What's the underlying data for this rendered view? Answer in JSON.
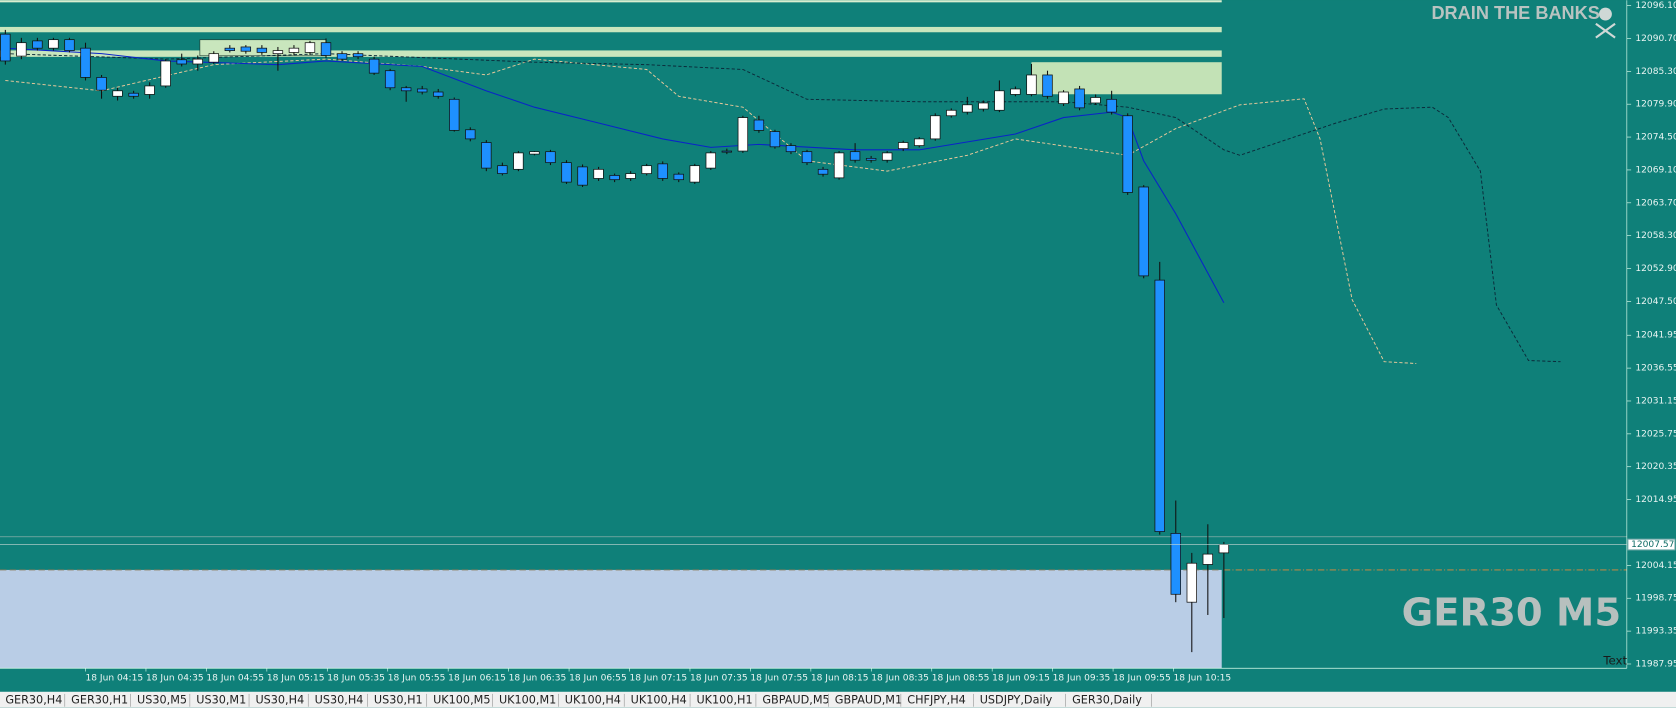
{
  "chart_data": {
    "type": "candlestick",
    "candles": {
      "open": [
        12091.4,
        12087.8,
        12090.3,
        12089.1,
        12090.5,
        12089.1,
        12084.3,
        12081.2,
        12081.7,
        12081.5,
        12082.9,
        12087.2,
        12086.5,
        12086.8,
        12089.1,
        12089.3,
        12089.1,
        12088.2,
        12088.4,
        12088.4,
        12090.0,
        12088.2,
        12088.2,
        12087.3,
        12085.4,
        12082.6,
        12082.4,
        12081.9,
        12080.7,
        12075.7,
        12073.6,
        12069.8,
        12069.2,
        12071.7,
        12072.1,
        12070.3,
        12069.6,
        12067.7,
        12068.2,
        12067.7,
        12068.5,
        12070.1,
        12068.4,
        12067.1,
        12069.4,
        12072.2,
        12072.2,
        12077.3,
        12075.4,
        12073.1,
        12072.1,
        12069.2,
        12067.8,
        12072.1,
        12071.0,
        12070.7,
        12072.6,
        12073.1,
        12074.2,
        12078.0,
        12078.6,
        12079.1,
        12078.9,
        12081.5,
        12081.5,
        12084.7,
        12080.0,
        12082.4,
        12080.1,
        12080.7,
        12078.0,
        12066.3,
        12051.0,
        12009.4,
        11998.1,
        12004.3,
        12006.2
      ],
      "high": [
        12092.1,
        12090.8,
        12090.8,
        12090.8,
        12090.8,
        12090.0,
        12084.7,
        12082.6,
        12082.1,
        12083.5,
        12087.3,
        12088.2,
        12087.9,
        12088.6,
        12089.6,
        12089.6,
        12089.6,
        12089.3,
        12089.6,
        12090.3,
        12090.7,
        12088.6,
        12088.6,
        12087.7,
        12085.7,
        12082.9,
        12082.9,
        12082.4,
        12081.0,
        12076.1,
        12074.0,
        12070.3,
        12072.2,
        12072.2,
        12072.4,
        12070.7,
        12070.0,
        12069.6,
        12068.5,
        12068.9,
        12070.1,
        12070.5,
        12068.7,
        12070.1,
        12072.2,
        12072.6,
        12078.0,
        12078.0,
        12075.7,
        12073.5,
        12072.4,
        12069.6,
        12072.2,
        12073.5,
        12071.4,
        12072.2,
        12073.9,
        12074.5,
        12078.4,
        12079.2,
        12081.1,
        12080.5,
        12083.8,
        12082.8,
        12086.5,
        12085.4,
        12082.2,
        12082.9,
        12081.5,
        12082.1,
        12078.4,
        12066.6,
        12054.0,
        12014.8,
        12006.2,
        12010.9,
        12008.0
      ],
      "low": [
        12086.4,
        12087.3,
        12088.7,
        12088.7,
        12088.4,
        12083.8,
        12080.8,
        12080.5,
        12080.8,
        12080.8,
        12082.6,
        12086.1,
        12085.4,
        12086.5,
        12088.4,
        12088.2,
        12088.0,
        12085.4,
        12088.0,
        12088.0,
        12087.5,
        12087.0,
        12087.3,
        12084.7,
        12082.2,
        12080.3,
        12081.5,
        12080.8,
        12075.4,
        12073.8,
        12068.9,
        12068.2,
        12068.9,
        12071.5,
        12069.9,
        12066.8,
        12066.3,
        12067.3,
        12067.1,
        12067.3,
        12068.2,
        12067.3,
        12067.1,
        12066.8,
        12069.1,
        12071.7,
        12071.9,
        12075.2,
        12072.6,
        12071.7,
        12069.9,
        12068.0,
        12067.5,
        12070.3,
        12070.3,
        12070.3,
        12072.2,
        12072.8,
        12073.9,
        12077.7,
        12078.2,
        12078.7,
        12078.6,
        12081.2,
        12081.2,
        12080.8,
        12079.6,
        12078.9,
        12079.8,
        12078.2,
        12065.0,
        12051.3,
        12009.2,
        11998.1,
        11989.9,
        11996.0,
        11995.5
      ],
      "close": [
        12087.0,
        12090.0,
        12089.1,
        12090.5,
        12088.7,
        12084.3,
        12082.2,
        12082.1,
        12081.2,
        12082.9,
        12087.0,
        12086.5,
        12087.3,
        12088.2,
        12088.7,
        12088.6,
        12088.4,
        12088.7,
        12089.1,
        12090.0,
        12087.9,
        12087.3,
        12087.7,
        12085.0,
        12082.6,
        12082.1,
        12081.9,
        12081.2,
        12075.6,
        12074.2,
        12069.4,
        12068.5,
        12071.9,
        12072.1,
        12070.3,
        12067.1,
        12066.6,
        12069.2,
        12067.5,
        12068.5,
        12069.8,
        12067.7,
        12067.5,
        12069.8,
        12071.9,
        12072.1,
        12077.7,
        12075.6,
        12072.9,
        12072.1,
        12070.3,
        12068.4,
        12071.9,
        12070.7,
        12070.7,
        12071.9,
        12073.6,
        12074.2,
        12078.0,
        12078.9,
        12079.8,
        12080.1,
        12082.1,
        12082.4,
        12084.7,
        12081.2,
        12081.9,
        12079.3,
        12081.0,
        12078.6,
        12065.4,
        12051.7,
        12009.7,
        11999.4,
        12004.5,
        12006.0,
        12007.57
      ]
    },
    "up_color": "#ffffff",
    "down_color": "#1e90ff",
    "moving_average": {
      "color": "#0a24c8",
      "x": [
        0,
        6,
        10,
        17,
        20,
        26,
        30,
        33,
        37,
        41,
        44,
        47,
        53,
        57,
        63,
        66,
        69,
        70,
        71,
        73,
        76
      ],
      "values": [
        12089.1,
        12088.2,
        12087.0,
        12086.4,
        12087.0,
        12086.1,
        12082.1,
        12079.4,
        12076.8,
        12074.2,
        12072.8,
        12073.3,
        12072.4,
        12072.4,
        12075.0,
        12077.7,
        12078.6,
        12077.7,
        12070.6,
        12061.9,
        12047.3
      ]
    },
    "ichimoku": [
      {
        "color": "#e8c89a",
        "x": [
          0,
          6,
          13,
          20,
          26,
          30,
          33,
          40,
          42,
          46,
          50,
          55,
          60,
          63,
          70,
          73,
          77,
          81,
          82,
          84,
          86,
          88
        ],
        "values": [
          12083.8,
          12082.1,
          12086.4,
          12087.3,
          12086.1,
          12084.7,
          12087.3,
          12085.6,
          12081.2,
          12079.4,
          12070.6,
          12068.9,
          12071.5,
          12074.2,
          12071.5,
          12075.9,
          12079.8,
          12080.8,
          12074.2,
          12047.8,
          12037.6,
          12037.3
        ]
      },
      {
        "color": "#0b2a3a",
        "x": [
          0,
          10,
          20,
          33,
          40,
          46,
          50,
          57,
          66,
          70,
          73,
          76,
          77,
          83,
          86,
          89,
          90,
          92,
          93,
          95,
          97
        ],
        "values": [
          12088.2,
          12087.3,
          12088.2,
          12086.8,
          12086.4,
          12085.6,
          12080.7,
          12080.3,
          12080.3,
          12079.4,
          12077.7,
          12072.4,
          12071.5,
          12076.8,
          12079.1,
          12079.4,
          12077.7,
          12068.9,
          12046.9,
          12037.8,
          12037.6
        ]
      }
    ],
    "ylim": [
      11987.25,
      12096.98
    ],
    "yticks": [
      {
        "value": 12096.1,
        "label": "12096.10"
      },
      {
        "value": 12090.7,
        "label": "12090.70"
      },
      {
        "value": 12085.3,
        "label": "12085.30"
      },
      {
        "value": 12079.9,
        "label": "12079.90"
      },
      {
        "value": 12074.5,
        "label": "12074.50"
      },
      {
        "value": 12069.1,
        "label": "12069.10"
      },
      {
        "value": 12063.7,
        "label": "12063.70"
      },
      {
        "value": 12058.3,
        "label": "12058.30"
      },
      {
        "value": 12052.9,
        "label": "12052.90"
      },
      {
        "value": 12047.5,
        "label": "12047.50"
      },
      12041.95,
      12036.55,
      12031.15,
      12025.75,
      12020.35,
      12014.95,
      12004.15,
      11998.75,
      11993.35,
      11987.95
    ],
    "x_labels": [
      "18 Jun 04:15",
      "18 Jun 04:35",
      "18 Jun 04:55",
      "18 Jun 05:15",
      "18 Jun 05:35",
      "18 Jun 05:55",
      "18 Jun 06:15",
      "18 Jun 06:35",
      "18 Jun 06:55",
      "18 Jun 07:15",
      "18 Jun 07:35",
      "18 Jun 07:55",
      "18 Jun 08:15",
      "18 Jun 08:35",
      "18 Jun 08:55",
      "18 Jun 09:15",
      "18 Jun 09:35",
      "18 Jun 09:55",
      "18 Jun 10:15"
    ],
    "watermark": "DRAIN THE BANKS",
    "symbol_label": "GER30 M5",
    "text_object": "Text"
  },
  "tabs": [
    "GER30,H4",
    "GER30,H1",
    "US30,M5",
    "US30,M1",
    "US30,H4",
    "US30,H4",
    "US30,H1",
    "UK100,M5",
    "UK100,M1",
    "UK100,H4",
    "UK100,H4",
    "UK100,H1",
    "GBPAUD,M5",
    "GBPAUD,M1",
    "CHFJPY,H4",
    "USDJPY,Daily",
    "GER30,Daily"
  ]
}
